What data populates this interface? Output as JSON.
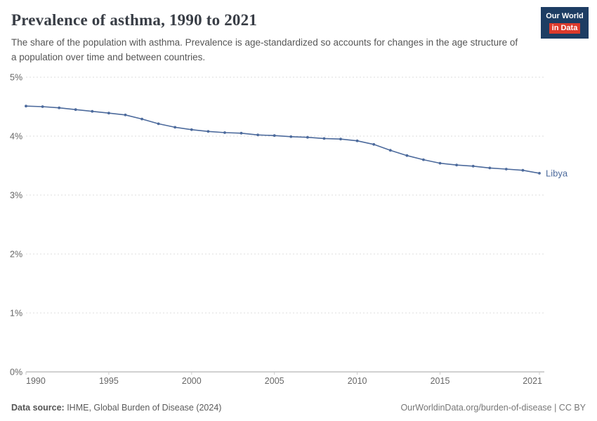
{
  "header": {
    "title": "Prevalence of asthma, 1990 to 2021",
    "subtitle": "The share of the population with asthma. Prevalence is age-standardized so accounts for changes in the age structure of a population over time and between countries.",
    "logo": {
      "line1": "Our World",
      "line2": "in Data"
    }
  },
  "chart_data": {
    "type": "line",
    "title": "Prevalence of asthma, 1990 to 2021",
    "xlabel": "",
    "ylabel": "",
    "xlim": [
      1990,
      2021
    ],
    "ylim": [
      0,
      5
    ],
    "grid": "horizontal-dashed",
    "legend_position": "end-of-line-label",
    "x_ticks": [
      1990,
      1995,
      2000,
      2005,
      2010,
      2015,
      2021
    ],
    "y_tick_labels": [
      "0%",
      "1%",
      "2%",
      "3%",
      "4%",
      "5%"
    ],
    "series": [
      {
        "name": "Libya",
        "color": "#4c6a9c",
        "x": [
          1990,
          1991,
          1992,
          1993,
          1994,
          1995,
          1996,
          1997,
          1998,
          1999,
          2000,
          2001,
          2002,
          2003,
          2004,
          2005,
          2006,
          2007,
          2008,
          2009,
          2010,
          2011,
          2012,
          2013,
          2014,
          2015,
          2016,
          2017,
          2018,
          2019,
          2020,
          2021
        ],
        "values": [
          4.51,
          4.5,
          4.48,
          4.45,
          4.42,
          4.39,
          4.36,
          4.29,
          4.21,
          4.15,
          4.11,
          4.08,
          4.06,
          4.05,
          4.02,
          4.01,
          3.99,
          3.98,
          3.96,
          3.95,
          3.92,
          3.86,
          3.76,
          3.67,
          3.6,
          3.54,
          3.51,
          3.49,
          3.46,
          3.44,
          3.42,
          3.37
        ]
      }
    ],
    "colors": {
      "line": "#4c6a9c",
      "grid": "#dcdcdc",
      "axis": "#a3a3a3",
      "tick_text": "#666666"
    }
  },
  "footer": {
    "source_label": "Data source:",
    "source_text": " IHME, Global Burden of Disease (2024)",
    "right_text": "OurWorldinData.org/burden-of-disease | CC BY"
  }
}
